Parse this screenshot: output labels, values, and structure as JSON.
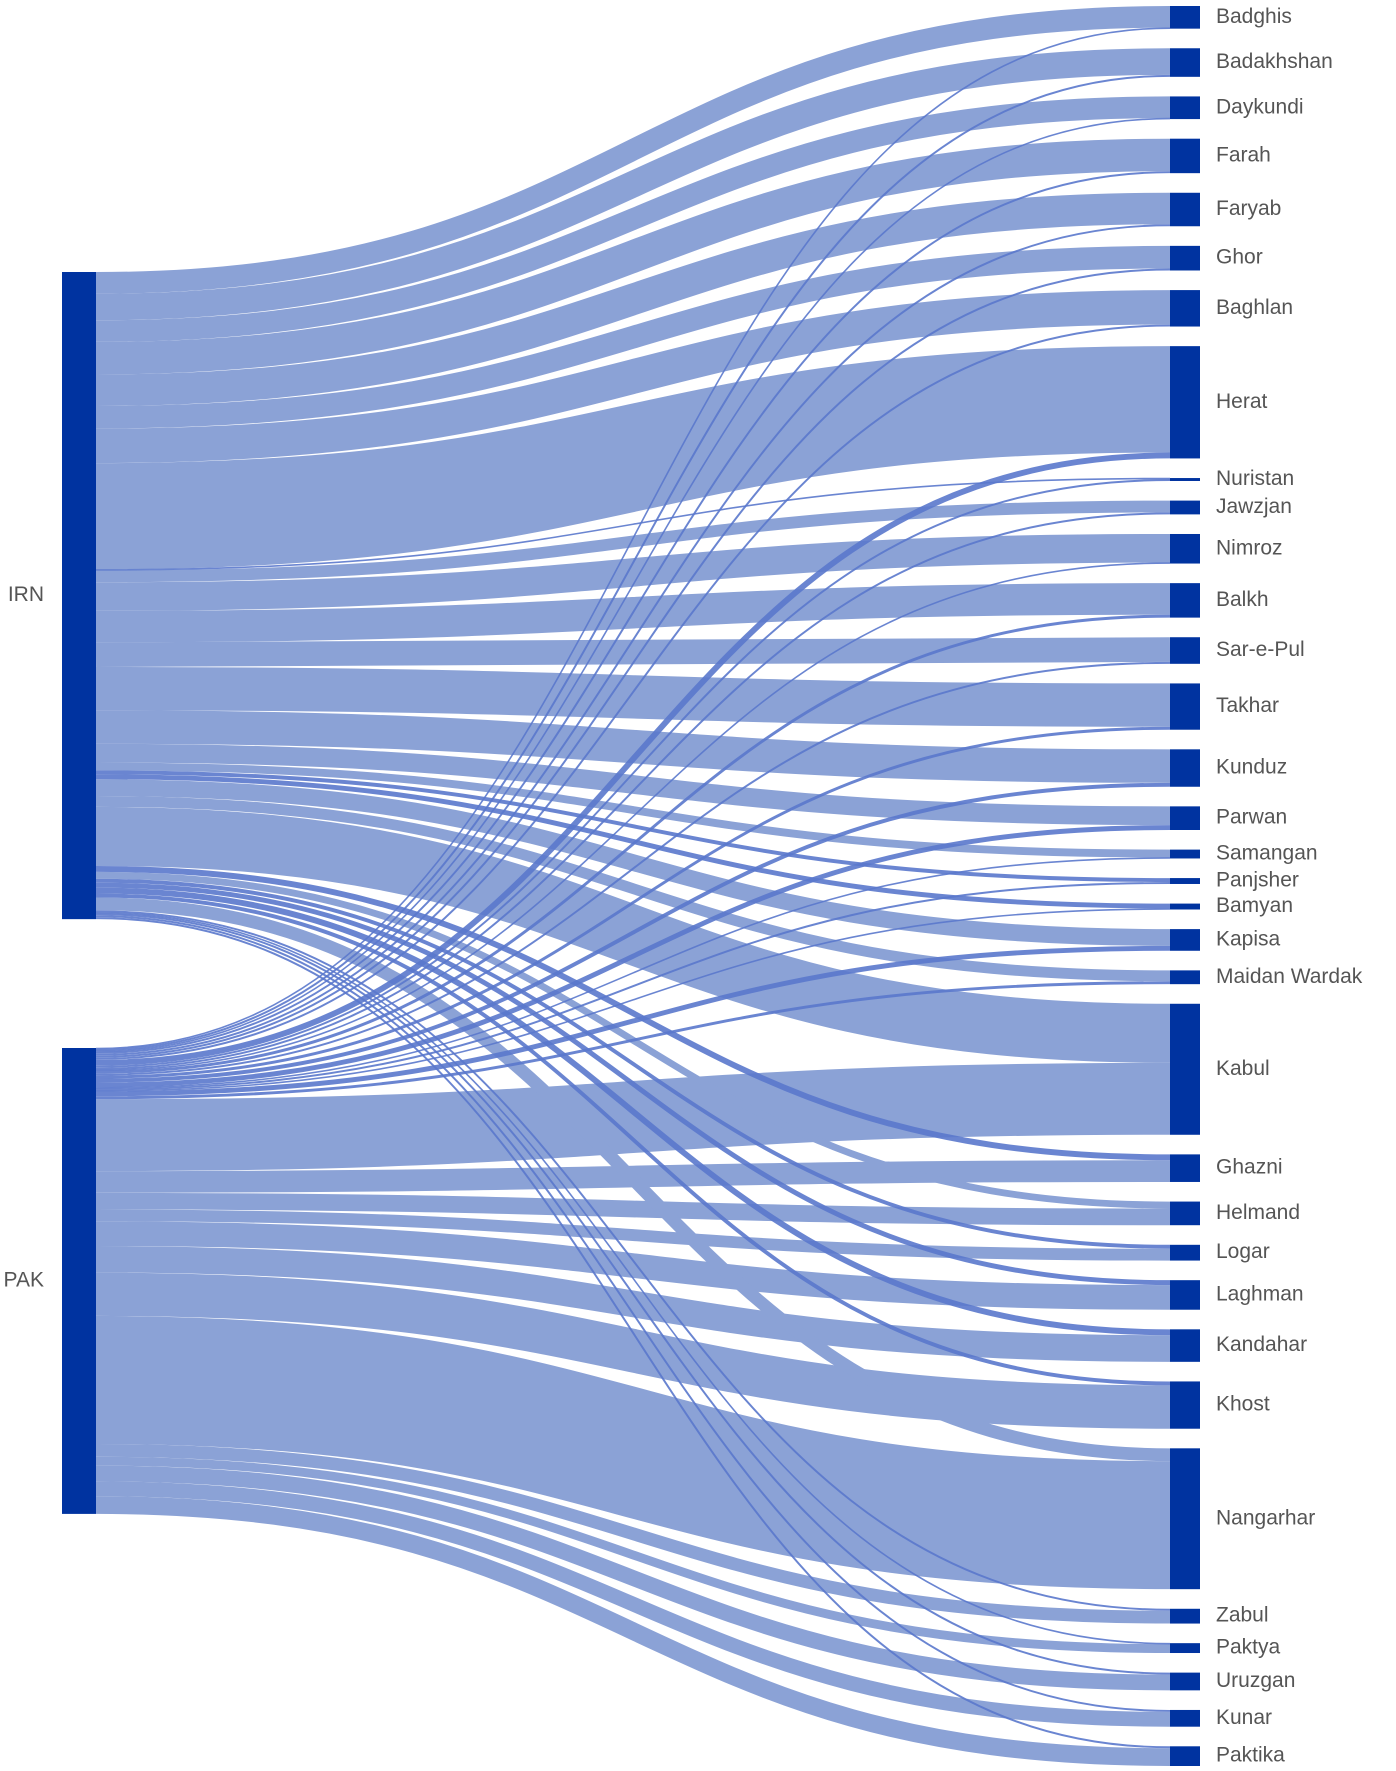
{
  "chart_data": {
    "type": "sankey",
    "colors": {
      "node": "#0033a0",
      "link": "#8ba2d6",
      "link_thin": "#5a78cc",
      "label": "#555555"
    },
    "sources": [
      "IRN",
      "PAK"
    ],
    "targets": [
      "Badghis",
      "Badakhshan",
      "Daykundi",
      "Farah",
      "Faryab",
      "Ghor",
      "Baghlan",
      "Herat",
      "Nuristan",
      "Jawzjan",
      "Nimroz",
      "Balkh",
      "Sar-e-Pul",
      "Takhar",
      "Kunduz",
      "Parwan",
      "Samangan",
      "Panjsher",
      "Bamyan",
      "Kapisa",
      "Maidan Wardak",
      "Kabul",
      "Ghazni",
      "Helmand",
      "Logar",
      "Laghman",
      "Kandahar",
      "Khost",
      "Nangarhar",
      "Zabul",
      "Paktya",
      "Uruzgan",
      "Kunar",
      "Paktika"
    ],
    "flows": [
      {
        "source": "IRN",
        "target": "Badghis",
        "value": 22
      },
      {
        "source": "PAK",
        "target": "Badghis",
        "value": 1
      },
      {
        "source": "IRN",
        "target": "Badakhshan",
        "value": 27
      },
      {
        "source": "PAK",
        "target": "Badakhshan",
        "value": 2
      },
      {
        "source": "IRN",
        "target": "Daykundi",
        "value": 22
      },
      {
        "source": "PAK",
        "target": "Daykundi",
        "value": 1
      },
      {
        "source": "IRN",
        "target": "Farah",
        "value": 33
      },
      {
        "source": "PAK",
        "target": "Farah",
        "value": 2
      },
      {
        "source": "IRN",
        "target": "Faryab",
        "value": 32
      },
      {
        "source": "PAK",
        "target": "Faryab",
        "value": 2
      },
      {
        "source": "IRN",
        "target": "Ghor",
        "value": 23
      },
      {
        "source": "PAK",
        "target": "Ghor",
        "value": 2
      },
      {
        "source": "IRN",
        "target": "Baghlan",
        "value": 35
      },
      {
        "source": "PAK",
        "target": "Baghlan",
        "value": 2
      },
      {
        "source": "IRN",
        "target": "Herat",
        "value": 108
      },
      {
        "source": "PAK",
        "target": "Herat",
        "value": 6
      },
      {
        "source": "IRN",
        "target": "Nuristan",
        "value": 1
      },
      {
        "source": "PAK",
        "target": "Nuristan",
        "value": 2
      },
      {
        "source": "IRN",
        "target": "Jawzjan",
        "value": 12
      },
      {
        "source": "PAK",
        "target": "Jawzjan",
        "value": 2
      },
      {
        "source": "IRN",
        "target": "Nimroz",
        "value": 29
      },
      {
        "source": "PAK",
        "target": "Nimroz",
        "value": 1
      },
      {
        "source": "IRN",
        "target": "Balkh",
        "value": 32
      },
      {
        "source": "PAK",
        "target": "Balkh",
        "value": 3
      },
      {
        "source": "IRN",
        "target": "Sar-e-Pul",
        "value": 25
      },
      {
        "source": "PAK",
        "target": "Sar-e-Pul",
        "value": 2
      },
      {
        "source": "IRN",
        "target": "Takhar",
        "value": 44
      },
      {
        "source": "PAK",
        "target": "Takhar",
        "value": 3
      },
      {
        "source": "IRN",
        "target": "Kunduz",
        "value": 34
      },
      {
        "source": "PAK",
        "target": "Kunduz",
        "value": 4
      },
      {
        "source": "IRN",
        "target": "Parwan",
        "value": 19
      },
      {
        "source": "PAK",
        "target": "Parwan",
        "value": 5
      },
      {
        "source": "IRN",
        "target": "Samangan",
        "value": 8
      },
      {
        "source": "PAK",
        "target": "Samangan",
        "value": 1
      },
      {
        "source": "IRN",
        "target": "Panjsher",
        "value": 4
      },
      {
        "source": "PAK",
        "target": "Panjsher",
        "value": 2
      },
      {
        "source": "IRN",
        "target": "Bamyan",
        "value": 5
      },
      {
        "source": "PAK",
        "target": "Bamyan",
        "value": 1
      },
      {
        "source": "IRN",
        "target": "Kapisa",
        "value": 17
      },
      {
        "source": "PAK",
        "target": "Kapisa",
        "value": 5
      },
      {
        "source": "IRN",
        "target": "Maidan Wardak",
        "value": 11
      },
      {
        "source": "PAK",
        "target": "Maidan Wardak",
        "value": 3
      },
      {
        "source": "IRN",
        "target": "Kabul",
        "value": 60
      },
      {
        "source": "PAK",
        "target": "Kabul",
        "value": 73
      },
      {
        "source": "IRN",
        "target": "Ghazni",
        "value": 6
      },
      {
        "source": "PAK",
        "target": "Ghazni",
        "value": 22
      },
      {
        "source": "IRN",
        "target": "Helmand",
        "value": 7
      },
      {
        "source": "PAK",
        "target": "Helmand",
        "value": 17
      },
      {
        "source": "IRN",
        "target": "Logar",
        "value": 4
      },
      {
        "source": "PAK",
        "target": "Logar",
        "value": 12
      },
      {
        "source": "IRN",
        "target": "Laghman",
        "value": 5
      },
      {
        "source": "PAK",
        "target": "Laghman",
        "value": 25
      },
      {
        "source": "IRN",
        "target": "Kandahar",
        "value": 6
      },
      {
        "source": "PAK",
        "target": "Kandahar",
        "value": 27
      },
      {
        "source": "IRN",
        "target": "Khost",
        "value": 4
      },
      {
        "source": "PAK",
        "target": "Khost",
        "value": 44
      },
      {
        "source": "IRN",
        "target": "Nangarhar",
        "value": 13
      },
      {
        "source": "PAK",
        "target": "Nangarhar",
        "value": 130
      },
      {
        "source": "IRN",
        "target": "Zabul",
        "value": 2
      },
      {
        "source": "PAK",
        "target": "Zabul",
        "value": 13
      },
      {
        "source": "IRN",
        "target": "Paktya",
        "value": 1
      },
      {
        "source": "PAK",
        "target": "Paktya",
        "value": 9
      },
      {
        "source": "IRN",
        "target": "Uruzgan",
        "value": 2
      },
      {
        "source": "PAK",
        "target": "Uruzgan",
        "value": 16
      },
      {
        "source": "IRN",
        "target": "Kunar",
        "value": 2
      },
      {
        "source": "PAK",
        "target": "Kunar",
        "value": 15
      },
      {
        "source": "IRN",
        "target": "Paktika",
        "value": 2
      },
      {
        "source": "PAK",
        "target": "Paktika",
        "value": 18
      }
    ]
  }
}
